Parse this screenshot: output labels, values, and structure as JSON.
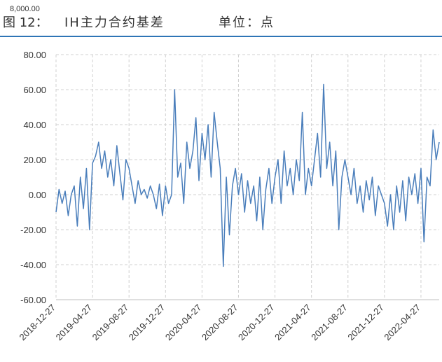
{
  "chart_data": {
    "type": "line",
    "overlap_label": "8,000.00",
    "figure_label": "图 12：",
    "title": "IH主力合约基差",
    "unit": "单位：点",
    "ylim": [
      -60,
      80
    ],
    "yticks": [
      {
        "value": -60,
        "label": "-60.00"
      },
      {
        "value": -40,
        "label": "-40.00"
      },
      {
        "value": -20,
        "label": "-20.00"
      },
      {
        "value": 0,
        "label": "0.00"
      },
      {
        "value": 20,
        "label": "20.00"
      },
      {
        "value": 40,
        "label": "40.00"
      },
      {
        "value": 60,
        "label": "60.00"
      },
      {
        "value": 80,
        "label": "80.00"
      }
    ],
    "grid": true,
    "categories": [
      "2018-12-27",
      null,
      null,
      null,
      null,
      null,
      null,
      null,
      null,
      null,
      null,
      null,
      "2019-04-27",
      null,
      null,
      null,
      null,
      null,
      null,
      null,
      null,
      null,
      null,
      null,
      "2019-08-27",
      null,
      null,
      null,
      null,
      null,
      null,
      null,
      null,
      null,
      null,
      null,
      "2019-12-27",
      null,
      null,
      null,
      null,
      null,
      null,
      null,
      null,
      null,
      null,
      null,
      "2020-04-27",
      null,
      null,
      null,
      null,
      null,
      null,
      null,
      null,
      null,
      null,
      null,
      "2020-08-27",
      null,
      null,
      null,
      null,
      null,
      null,
      null,
      null,
      null,
      null,
      null,
      "2020-12-27",
      null,
      null,
      null,
      null,
      null,
      null,
      null,
      null,
      null,
      null,
      null,
      "2021-04-27",
      null,
      null,
      null,
      null,
      null,
      null,
      null,
      null,
      null,
      null,
      null,
      "2021-08-27",
      null,
      null,
      null,
      null,
      null,
      null,
      null,
      null,
      null,
      null,
      null,
      "2021-12-27",
      null,
      null,
      null,
      null,
      null,
      null,
      null,
      null,
      null,
      null,
      null,
      "2022-04-27",
      null,
      null,
      null,
      null,
      null,
      null
    ],
    "series": [
      {
        "name": "IH主力合约基差",
        "color": "#4a7ebb",
        "values": [
          -10,
          3,
          -5,
          2,
          -12,
          0,
          5,
          -18,
          10,
          -8,
          15,
          -20,
          18,
          22,
          30,
          15,
          25,
          10,
          20,
          5,
          28,
          12,
          -3,
          20,
          15,
          5,
          -5,
          8,
          0,
          3,
          -2,
          5,
          0,
          -8,
          6,
          -12,
          5,
          -5,
          0,
          60,
          10,
          18,
          -5,
          30,
          15,
          25,
          44,
          8,
          35,
          20,
          40,
          10,
          47,
          30,
          15,
          -41,
          10,
          -23,
          5,
          15,
          0,
          12,
          -10,
          8,
          -5,
          5,
          -15,
          10,
          -20,
          3,
          15,
          -5,
          10,
          20,
          -5,
          25,
          5,
          15,
          0,
          20,
          8,
          47,
          0,
          15,
          5,
          20,
          35,
          10,
          63,
          15,
          30,
          5,
          25,
          -20,
          10,
          20,
          10,
          0,
          15,
          -5,
          5,
          -10,
          8,
          -3,
          10,
          -12,
          5,
          0,
          -5,
          -18,
          0,
          -20,
          5,
          -10,
          8,
          -15,
          10,
          0,
          12,
          -5,
          15,
          -27,
          10,
          5,
          37,
          20,
          30
        ]
      }
    ]
  }
}
